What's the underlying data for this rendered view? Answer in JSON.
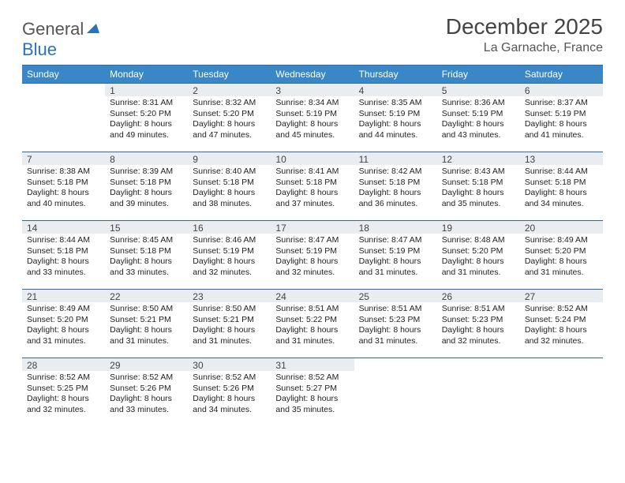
{
  "brand": {
    "part1": "General",
    "part2": "Blue"
  },
  "title": "December 2025",
  "location": "La Garnache, France",
  "colors": {
    "header_bg": "#3a87c8",
    "border": "#2b6aa3",
    "daynum_bg": "#e9edf0",
    "text": "#222222",
    "title_text": "#444444"
  },
  "weekdays": [
    "Sunday",
    "Monday",
    "Tuesday",
    "Wednesday",
    "Thursday",
    "Friday",
    "Saturday"
  ],
  "weeks": [
    [
      null,
      {
        "n": "1",
        "sr": "8:31 AM",
        "ss": "5:20 PM",
        "dl": "8 hours and 49 minutes."
      },
      {
        "n": "2",
        "sr": "8:32 AM",
        "ss": "5:20 PM",
        "dl": "8 hours and 47 minutes."
      },
      {
        "n": "3",
        "sr": "8:34 AM",
        "ss": "5:19 PM",
        "dl": "8 hours and 45 minutes."
      },
      {
        "n": "4",
        "sr": "8:35 AM",
        "ss": "5:19 PM",
        "dl": "8 hours and 44 minutes."
      },
      {
        "n": "5",
        "sr": "8:36 AM",
        "ss": "5:19 PM",
        "dl": "8 hours and 43 minutes."
      },
      {
        "n": "6",
        "sr": "8:37 AM",
        "ss": "5:19 PM",
        "dl": "8 hours and 41 minutes."
      }
    ],
    [
      {
        "n": "7",
        "sr": "8:38 AM",
        "ss": "5:18 PM",
        "dl": "8 hours and 40 minutes."
      },
      {
        "n": "8",
        "sr": "8:39 AM",
        "ss": "5:18 PM",
        "dl": "8 hours and 39 minutes."
      },
      {
        "n": "9",
        "sr": "8:40 AM",
        "ss": "5:18 PM",
        "dl": "8 hours and 38 minutes."
      },
      {
        "n": "10",
        "sr": "8:41 AM",
        "ss": "5:18 PM",
        "dl": "8 hours and 37 minutes."
      },
      {
        "n": "11",
        "sr": "8:42 AM",
        "ss": "5:18 PM",
        "dl": "8 hours and 36 minutes."
      },
      {
        "n": "12",
        "sr": "8:43 AM",
        "ss": "5:18 PM",
        "dl": "8 hours and 35 minutes."
      },
      {
        "n": "13",
        "sr": "8:44 AM",
        "ss": "5:18 PM",
        "dl": "8 hours and 34 minutes."
      }
    ],
    [
      {
        "n": "14",
        "sr": "8:44 AM",
        "ss": "5:18 PM",
        "dl": "8 hours and 33 minutes."
      },
      {
        "n": "15",
        "sr": "8:45 AM",
        "ss": "5:18 PM",
        "dl": "8 hours and 33 minutes."
      },
      {
        "n": "16",
        "sr": "8:46 AM",
        "ss": "5:19 PM",
        "dl": "8 hours and 32 minutes."
      },
      {
        "n": "17",
        "sr": "8:47 AM",
        "ss": "5:19 PM",
        "dl": "8 hours and 32 minutes."
      },
      {
        "n": "18",
        "sr": "8:47 AM",
        "ss": "5:19 PM",
        "dl": "8 hours and 31 minutes."
      },
      {
        "n": "19",
        "sr": "8:48 AM",
        "ss": "5:20 PM",
        "dl": "8 hours and 31 minutes."
      },
      {
        "n": "20",
        "sr": "8:49 AM",
        "ss": "5:20 PM",
        "dl": "8 hours and 31 minutes."
      }
    ],
    [
      {
        "n": "21",
        "sr": "8:49 AM",
        "ss": "5:20 PM",
        "dl": "8 hours and 31 minutes."
      },
      {
        "n": "22",
        "sr": "8:50 AM",
        "ss": "5:21 PM",
        "dl": "8 hours and 31 minutes."
      },
      {
        "n": "23",
        "sr": "8:50 AM",
        "ss": "5:21 PM",
        "dl": "8 hours and 31 minutes."
      },
      {
        "n": "24",
        "sr": "8:51 AM",
        "ss": "5:22 PM",
        "dl": "8 hours and 31 minutes."
      },
      {
        "n": "25",
        "sr": "8:51 AM",
        "ss": "5:23 PM",
        "dl": "8 hours and 31 minutes."
      },
      {
        "n": "26",
        "sr": "8:51 AM",
        "ss": "5:23 PM",
        "dl": "8 hours and 32 minutes."
      },
      {
        "n": "27",
        "sr": "8:52 AM",
        "ss": "5:24 PM",
        "dl": "8 hours and 32 minutes."
      }
    ],
    [
      {
        "n": "28",
        "sr": "8:52 AM",
        "ss": "5:25 PM",
        "dl": "8 hours and 32 minutes."
      },
      {
        "n": "29",
        "sr": "8:52 AM",
        "ss": "5:26 PM",
        "dl": "8 hours and 33 minutes."
      },
      {
        "n": "30",
        "sr": "8:52 AM",
        "ss": "5:26 PM",
        "dl": "8 hours and 34 minutes."
      },
      {
        "n": "31",
        "sr": "8:52 AM",
        "ss": "5:27 PM",
        "dl": "8 hours and 35 minutes."
      },
      null,
      null,
      null
    ]
  ],
  "labels": {
    "sunrise": "Sunrise:",
    "sunset": "Sunset:",
    "daylight": "Daylight:"
  }
}
